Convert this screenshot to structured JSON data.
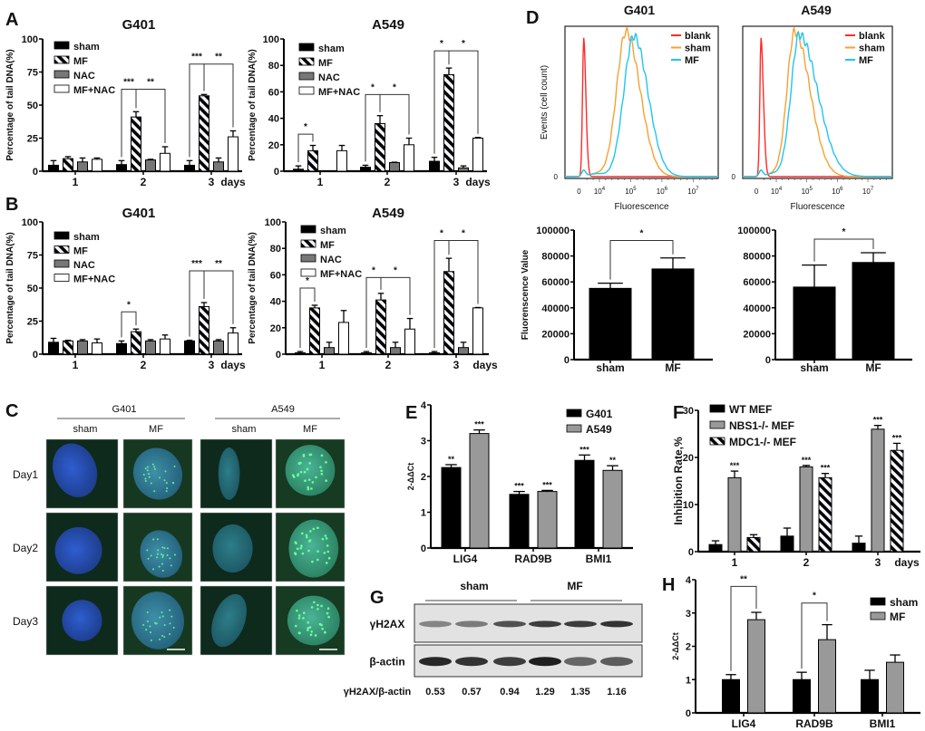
{
  "panel_labels": {
    "A": "A",
    "B": "B",
    "C": "C",
    "D": "D",
    "E": "E",
    "F": "F",
    "G": "G",
    "H": "H"
  },
  "chart_data": [
    {
      "id": "A-G401",
      "panel": "A",
      "type": "bar",
      "title": "G401",
      "ylabel": "Percentage of tail DNA(%)",
      "xlabel": "days",
      "categories": [
        "1",
        "2",
        "3"
      ],
      "ylim": [
        0,
        100
      ],
      "yticks": [
        0,
        25,
        50,
        75,
        100
      ],
      "series": [
        {
          "name": "sham",
          "fill": "#000000",
          "values": [
            4.5,
            5,
            4.5
          ],
          "errors": [
            3.5,
            3,
            3.5
          ]
        },
        {
          "name": "MF",
          "fill": "hatch",
          "values": [
            9.5,
            41,
            57
          ],
          "errors": [
            1.5,
            4,
            1
          ]
        },
        {
          "name": "NAC",
          "fill": "#777777",
          "values": [
            7,
            8.5,
            7
          ],
          "errors": [
            3,
            0.5,
            3
          ]
        },
        {
          "name": "MF+NAC",
          "fill": "#ffffff",
          "values": [
            9,
            13.5,
            26
          ],
          "errors": [
            1,
            5,
            4.5
          ]
        }
      ],
      "annotations": [
        {
          "a": [
            1,
            0
          ],
          "b": [
            1,
            1
          ],
          "y": 62,
          "text": "***"
        },
        {
          "a": [
            1,
            1
          ],
          "b": [
            1,
            3
          ],
          "y": 62,
          "text": "**"
        },
        {
          "a": [
            2,
            0
          ],
          "b": [
            2,
            1
          ],
          "y": 81,
          "text": "***"
        },
        {
          "a": [
            2,
            1
          ],
          "b": [
            2,
            3
          ],
          "y": 81,
          "text": "**"
        }
      ]
    },
    {
      "id": "A-A549",
      "panel": "A",
      "type": "bar",
      "title": "A549",
      "ylabel": "Percentage of tail DNA(%)",
      "xlabel": "days",
      "categories": [
        "1",
        "2",
        "3"
      ],
      "ylim": [
        0,
        100
      ],
      "yticks": [
        0,
        20,
        40,
        60,
        80,
        100
      ],
      "series": [
        {
          "name": "sham",
          "fill": "#000000",
          "values": [
            1.5,
            3,
            7.5
          ],
          "errors": [
            2.5,
            1.5,
            3
          ]
        },
        {
          "name": "MF",
          "fill": "hatch",
          "values": [
            15.5,
            36,
            73
          ],
          "errors": [
            4,
            6,
            5
          ]
        },
        {
          "name": "NAC",
          "fill": "#777777",
          "values": [
            0,
            6.5,
            2.5
          ],
          "errors": [
            0,
            0.3,
            1.5
          ]
        },
        {
          "name": "MF+NAC",
          "fill": "#ffffff",
          "values": [
            15.5,
            20,
            25
          ],
          "errors": [
            4,
            5,
            0.5
          ]
        }
      ],
      "annotations": [
        {
          "a": [
            0,
            0
          ],
          "b": [
            0,
            1
          ],
          "y": 28,
          "text": "*"
        },
        {
          "a": [
            1,
            0
          ],
          "b": [
            1,
            1
          ],
          "y": 58,
          "text": "*"
        },
        {
          "a": [
            1,
            1
          ],
          "b": [
            1,
            3
          ],
          "y": 58,
          "text": "*"
        },
        {
          "a": [
            2,
            0
          ],
          "b": [
            2,
            1
          ],
          "y": 91,
          "text": "*"
        },
        {
          "a": [
            2,
            1
          ],
          "b": [
            2,
            3
          ],
          "y": 91,
          "text": "*"
        }
      ]
    },
    {
      "id": "B-G401",
      "panel": "B",
      "type": "bar",
      "title": "G401",
      "ylabel": "Percentage of tail DNA(%)",
      "xlabel": "days",
      "categories": [
        "1",
        "2",
        "3"
      ],
      "ylim": [
        0,
        100
      ],
      "yticks": [
        0,
        25,
        50,
        75,
        100
      ],
      "series": [
        {
          "name": "sham",
          "fill": "#000000",
          "values": [
            9,
            8,
            10
          ],
          "errors": [
            3,
            2,
            0.5
          ]
        },
        {
          "name": "MF",
          "fill": "hatch",
          "values": [
            10,
            17,
            36
          ],
          "errors": [
            0.5,
            2,
            3
          ]
        },
        {
          "name": "NAC",
          "fill": "#777777",
          "values": [
            10,
            10,
            10
          ],
          "errors": [
            1,
            1,
            1
          ]
        },
        {
          "name": "MF+NAC",
          "fill": "#ffffff",
          "values": [
            8.5,
            11.5,
            16
          ],
          "errors": [
            3,
            3,
            4
          ]
        }
      ],
      "annotations": [
        {
          "a": [
            1,
            0
          ],
          "b": [
            1,
            1
          ],
          "y": 32,
          "text": "*"
        },
        {
          "a": [
            2,
            0
          ],
          "b": [
            2,
            1
          ],
          "y": 63,
          "text": "***"
        },
        {
          "a": [
            2,
            1
          ],
          "b": [
            2,
            3
          ],
          "y": 63,
          "text": "**"
        }
      ]
    },
    {
      "id": "B-A549",
      "panel": "B",
      "type": "bar",
      "title": "A549",
      "ylabel": "Percentage of tail DNA(%)",
      "xlabel": "days",
      "categories": [
        "1",
        "2",
        "3"
      ],
      "ylim": [
        0,
        100
      ],
      "yticks": [
        0,
        20,
        40,
        60,
        80,
        100
      ],
      "series": [
        {
          "name": "sham",
          "fill": "#000000",
          "values": [
            1,
            1,
            1
          ],
          "errors": [
            1,
            1,
            1
          ]
        },
        {
          "name": "MF",
          "fill": "hatch",
          "values": [
            35,
            41,
            62.5
          ],
          "errors": [
            2,
            5,
            10
          ]
        },
        {
          "name": "NAC",
          "fill": "#777777",
          "values": [
            5,
            5,
            5
          ],
          "errors": [
            4,
            4,
            4
          ]
        },
        {
          "name": "MF+NAC",
          "fill": "#ffffff",
          "values": [
            24,
            19,
            35
          ],
          "errors": [
            9,
            8,
            0.3
          ]
        }
      ],
      "annotations": [
        {
          "a": [
            0,
            0
          ],
          "b": [
            0,
            1
          ],
          "y": 50,
          "text": "*"
        },
        {
          "a": [
            1,
            0
          ],
          "b": [
            1,
            1
          ],
          "y": 58,
          "text": "*"
        },
        {
          "a": [
            1,
            1
          ],
          "b": [
            1,
            3
          ],
          "y": 58,
          "text": "*"
        },
        {
          "a": [
            2,
            0
          ],
          "b": [
            2,
            1
          ],
          "y": 86,
          "text": "*"
        },
        {
          "a": [
            2,
            1
          ],
          "b": [
            2,
            3
          ],
          "y": 86,
          "text": "*"
        }
      ]
    },
    {
      "id": "D-flow-G401",
      "panel": "D",
      "type": "line",
      "title": "G401",
      "xlabel": "Fluorescence",
      "ylabel": "Events (cell count)",
      "y_zero_label": "0",
      "xlim": [
        2.9,
        7.8
      ],
      "xticks": [
        {
          "label": "0",
          "log": 3.35
        },
        {
          "base": "10",
          "exp": "4",
          "log": 4
        },
        {
          "base": "10",
          "exp": "5",
          "log": 5
        },
        {
          "base": "10",
          "exp": "6",
          "log": 6
        },
        {
          "base": "10",
          "exp": "7",
          "log": 7
        }
      ],
      "series": [
        {
          "name": "blank",
          "color": "#ff2a2a",
          "peak_log": 3.5,
          "spread_left": 0.04,
          "spread_right": 0.07,
          "rel_height": 0.93
        },
        {
          "name": "sham",
          "color": "#f7a030",
          "peak_log": 4.85,
          "spread_left": 0.3,
          "spread_right": 0.45,
          "rel_height": 1.0
        },
        {
          "name": "MF",
          "color": "#22c4f0",
          "peak_log": 5.1,
          "spread_left": 0.32,
          "spread_right": 0.45,
          "rel_height": 0.97
        }
      ]
    },
    {
      "id": "D-flow-A549",
      "panel": "D",
      "type": "line",
      "title": "A549",
      "xlabel": "Fluorescence",
      "ylabel": "",
      "y_zero_label": "0",
      "xlim": [
        2.9,
        7.8
      ],
      "xticks": [
        {
          "label": "0",
          "log": 3.35
        },
        {
          "base": "10",
          "exp": "4",
          "log": 4
        },
        {
          "base": "10",
          "exp": "5",
          "log": 5
        },
        {
          "base": "10",
          "exp": "6",
          "log": 6
        },
        {
          "base": "10",
          "exp": "7",
          "log": 7
        }
      ],
      "series": [
        {
          "name": "blank",
          "color": "#ff2a2a",
          "peak_log": 3.5,
          "spread_left": 0.04,
          "spread_right": 0.08,
          "rel_height": 0.93
        },
        {
          "name": "sham",
          "color": "#f7a030",
          "peak_log": 4.6,
          "spread_left": 0.25,
          "spread_right": 0.5,
          "rel_height": 1.0
        },
        {
          "name": "MF",
          "color": "#22c4f0",
          "peak_log": 4.75,
          "spread_left": 0.27,
          "spread_right": 0.6,
          "rel_height": 0.98
        }
      ]
    },
    {
      "id": "D-bar-G401",
      "panel": "D",
      "type": "bar",
      "title": "",
      "ylabel": "Fluorenscence Value",
      "xlabel": "",
      "categories": [
        "sham",
        "MF"
      ],
      "ylim": [
        0,
        100000
      ],
      "yticks": [
        0,
        20000,
        40000,
        60000,
        80000,
        100000
      ],
      "series": [
        {
          "name": "",
          "fill": "#000000",
          "values": [
            55000,
            70000
          ],
          "errors": [
            4000,
            8500
          ]
        }
      ],
      "annotations": [
        {
          "a": [
            0,
            0
          ],
          "b": [
            1,
            0
          ],
          "y": 92000,
          "text": "*"
        }
      ]
    },
    {
      "id": "D-bar-A549",
      "panel": "D",
      "type": "bar",
      "title": "",
      "ylabel": "",
      "xlabel": "",
      "categories": [
        "sham",
        "MF"
      ],
      "ylim": [
        0,
        100000
      ],
      "yticks": [
        0,
        20000,
        40000,
        60000,
        80000,
        100000
      ],
      "series": [
        {
          "name": "",
          "fill": "#000000",
          "values": [
            56000,
            75000
          ],
          "errors": [
            17000,
            7500
          ]
        }
      ],
      "annotations": [
        {
          "a": [
            0,
            0
          ],
          "b": [
            1,
            0
          ],
          "y": 93000,
          "text": "*"
        }
      ]
    },
    {
      "id": "E",
      "panel": "E",
      "type": "bar",
      "title": "",
      "ylabel": "2-ΔΔCt",
      "xlabel": "",
      "categories": [
        "LIG4",
        "RAD9B",
        "BMI1"
      ],
      "ylim": [
        0,
        4
      ],
      "yticks": [
        0,
        1,
        2,
        3,
        4
      ],
      "series": [
        {
          "name": "G401",
          "fill": "#000000",
          "values": [
            2.25,
            1.5,
            2.45
          ],
          "errors": [
            0.08,
            0.08,
            0.15
          ],
          "labels": [
            "**",
            "***",
            "***"
          ]
        },
        {
          "name": "A549",
          "fill": "#999999",
          "values": [
            3.2,
            1.58,
            2.17
          ],
          "errors": [
            0.1,
            0.03,
            0.13
          ],
          "labels": [
            "***",
            "***",
            "**"
          ]
        }
      ],
      "annotations": []
    },
    {
      "id": "F",
      "panel": "F",
      "type": "bar",
      "title": "",
      "ylabel": "Inhibition Rate,%",
      "xlabel": "days",
      "categories": [
        "1",
        "2",
        "3"
      ],
      "ylim": [
        0,
        30
      ],
      "yticks": [
        0,
        10,
        20,
        30
      ],
      "series": [
        {
          "name": "WT MEF",
          "fill": "#000000",
          "values": [
            1.5,
            3.3,
            1.8
          ],
          "errors": [
            0.8,
            1.7,
            1.5
          ],
          "labels": [
            "",
            "",
            ""
          ]
        },
        {
          "name": "NBS1-/- MEF",
          "fill": "#999999",
          "values": [
            15.7,
            18,
            26
          ],
          "errors": [
            1.4,
            0.3,
            0.8
          ],
          "labels": [
            "***",
            "***",
            "***"
          ]
        },
        {
          "name": "MDC1-/- MEF",
          "fill": "hatch",
          "values": [
            3,
            15.7,
            21.5
          ],
          "errors": [
            0.6,
            0.9,
            1.5
          ],
          "labels": [
            "",
            "***",
            "***"
          ]
        }
      ],
      "annotations": []
    },
    {
      "id": "H",
      "panel": "H",
      "type": "bar",
      "title": "",
      "ylabel": "2-ΔΔCt",
      "xlabel": "",
      "categories": [
        "LIG4",
        "RAD9B",
        "BMI1"
      ],
      "ylim": [
        0,
        4
      ],
      "yticks": [
        0,
        1,
        2,
        3,
        4
      ],
      "series": [
        {
          "name": "sham",
          "fill": "#000000",
          "values": [
            1,
            1,
            1
          ],
          "errors": [
            0.15,
            0.22,
            0.28
          ]
        },
        {
          "name": "MF",
          "fill": "#999999",
          "values": [
            2.8,
            2.2,
            1.52
          ],
          "errors": [
            0.22,
            0.45,
            0.22
          ]
        }
      ],
      "annotations": [
        {
          "a": [
            0,
            0
          ],
          "b": [
            0,
            1
          ],
          "y": 3.8,
          "text": "**"
        },
        {
          "a": [
            1,
            0
          ],
          "b": [
            1,
            1
          ],
          "y": 3.3,
          "text": "*"
        }
      ]
    }
  ],
  "microscopy": {
    "groups": [
      "G401",
      "A549"
    ],
    "conditions": [
      "sham",
      "MF",
      "sham",
      "MF"
    ],
    "rows": [
      "Day1",
      "Day2",
      "Day3"
    ]
  },
  "western_blot": {
    "groups": [
      "sham",
      "MF"
    ],
    "rows": [
      "γH2AX",
      "β-actin"
    ],
    "ratio_label": "γH2AX/β-actin",
    "ratios": [
      "0.53",
      "0.57",
      "0.94",
      "1.29",
      "1.35",
      "1.16"
    ]
  }
}
